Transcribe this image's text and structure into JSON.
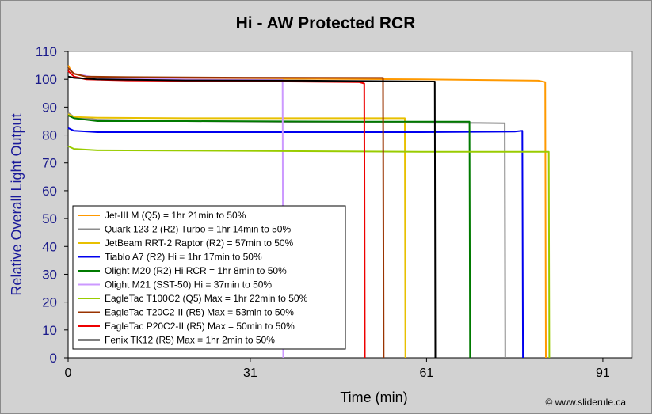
{
  "chart_data": {
    "type": "line",
    "title": "Hi - AW Protected RCR",
    "xlabel": "Time (min)",
    "ylabel": "Relative Overall Light Output",
    "xlim": [
      0,
      96
    ],
    "ylim": [
      0,
      110
    ],
    "xticks": [
      0,
      31,
      61,
      91
    ],
    "yticks": [
      0,
      10,
      20,
      30,
      40,
      50,
      60,
      70,
      80,
      90,
      100,
      110
    ],
    "grid": false,
    "legend_position": "bottom-left",
    "credit": "© www.sliderule.ca",
    "series": [
      {
        "name": "Jet-III M (Q5) = 1hr 21min to 50%",
        "color": "#ff9900",
        "points": [
          [
            0,
            105
          ],
          [
            0.5,
            103
          ],
          [
            1,
            102
          ],
          [
            3,
            101
          ],
          [
            10,
            100.5
          ],
          [
            30,
            100.3
          ],
          [
            60,
            100
          ],
          [
            80,
            99.5
          ],
          [
            81.2,
            99
          ],
          [
            81.3,
            0
          ]
        ]
      },
      {
        "name": "Quark 123-2 (R2) Turbo = 1hr 14min to 50%",
        "color": "#8c8c8c",
        "points": [
          [
            0,
            88
          ],
          [
            1,
            86.5
          ],
          [
            5,
            85.5
          ],
          [
            20,
            85
          ],
          [
            50,
            84.5
          ],
          [
            70,
            84.3
          ],
          [
            74.3,
            84.2
          ],
          [
            74.4,
            0
          ]
        ]
      },
      {
        "name": "JetBeam RRT-2 Raptor (R2) = 57min to 50%",
        "color": "#e8c000",
        "points": [
          [
            0,
            87.5
          ],
          [
            1,
            86.5
          ],
          [
            5,
            86.2
          ],
          [
            20,
            86
          ],
          [
            40,
            86
          ],
          [
            57.3,
            86
          ],
          [
            57.4,
            0
          ]
        ]
      },
      {
        "name": "Tiablo A7 (R2) Hi = 1hr 17min to 50%",
        "color": "#0000ee",
        "points": [
          [
            0,
            82.5
          ],
          [
            1,
            81.5
          ],
          [
            5,
            81
          ],
          [
            30,
            81
          ],
          [
            60,
            81
          ],
          [
            76,
            81.2
          ],
          [
            77.3,
            81.5
          ],
          [
            77.4,
            0
          ]
        ]
      },
      {
        "name": "Olight M20 (R2) Hi RCR = 1hr 8min to 50%",
        "color": "#007a00",
        "points": [
          [
            0,
            87
          ],
          [
            1,
            86
          ],
          [
            5,
            85
          ],
          [
            20,
            85
          ],
          [
            50,
            84.8
          ],
          [
            68.3,
            84.8
          ],
          [
            68.4,
            0
          ]
        ]
      },
      {
        "name": "Olight M21 (SST-50) Hi = 37min to 50%",
        "color": "#cc99ff",
        "points": [
          [
            0,
            104
          ],
          [
            1,
            102
          ],
          [
            5,
            100.5
          ],
          [
            20,
            100
          ],
          [
            36.5,
            99.8
          ],
          [
            36.6,
            0
          ]
        ]
      },
      {
        "name": "EagleTac T100C2 (Q5) Max = 1hr 22min to 50%",
        "color": "#99cc00",
        "points": [
          [
            0,
            76
          ],
          [
            1,
            75
          ],
          [
            5,
            74.5
          ],
          [
            30,
            74.3
          ],
          [
            60,
            74
          ],
          [
            81.8,
            74
          ],
          [
            81.9,
            0
          ]
        ]
      },
      {
        "name": "EagleTac T20C2-II (R5) Max = 53min to 50%",
        "color": "#993300",
        "points": [
          [
            0,
            104
          ],
          [
            1,
            102
          ],
          [
            3,
            101
          ],
          [
            10,
            100.8
          ],
          [
            30,
            100.6
          ],
          [
            52.5,
            100.5
          ],
          [
            53.6,
            100.5
          ],
          [
            53.7,
            0
          ]
        ]
      },
      {
        "name": "EagleTac P20C2-II (R5) Max = 50min to 50%",
        "color": "#ee0000",
        "points": [
          [
            0,
            103
          ],
          [
            1,
            101
          ],
          [
            3,
            100
          ],
          [
            10,
            99.6
          ],
          [
            30,
            99.3
          ],
          [
            49.5,
            99
          ],
          [
            50.4,
            98.5
          ],
          [
            50.5,
            0
          ]
        ]
      },
      {
        "name": "Fenix TK12 (R5) Max = 1hr 2min to 50%",
        "color": "#000000",
        "points": [
          [
            0,
            101
          ],
          [
            1,
            100.5
          ],
          [
            5,
            100
          ],
          [
            20,
            99.6
          ],
          [
            40,
            99.5
          ],
          [
            62.4,
            99.2
          ],
          [
            62.5,
            0
          ]
        ]
      }
    ]
  }
}
